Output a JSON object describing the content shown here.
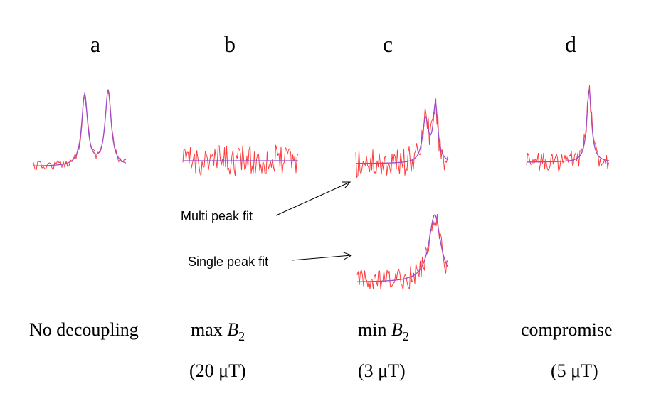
{
  "panels": {
    "a": {
      "letter": "a",
      "caption": "No decoupling"
    },
    "b": {
      "letter": "b",
      "caption_prefix": "max ",
      "caption_var": "B",
      "caption_sub": "2",
      "field": "(20 μT)"
    },
    "c": {
      "letter": "c",
      "caption_prefix": "min ",
      "caption_var": "B",
      "caption_sub": "2",
      "field": "(3 μT)"
    },
    "d": {
      "letter": "d",
      "caption": "compromise",
      "field": "(5 μT)"
    }
  },
  "annotations": {
    "multi": "Multi peak fit",
    "single": "Single peak fit"
  },
  "colors": {
    "spectrum": "#ff3b3b",
    "fit": "#9b4dca",
    "arrow": "#000000"
  }
}
